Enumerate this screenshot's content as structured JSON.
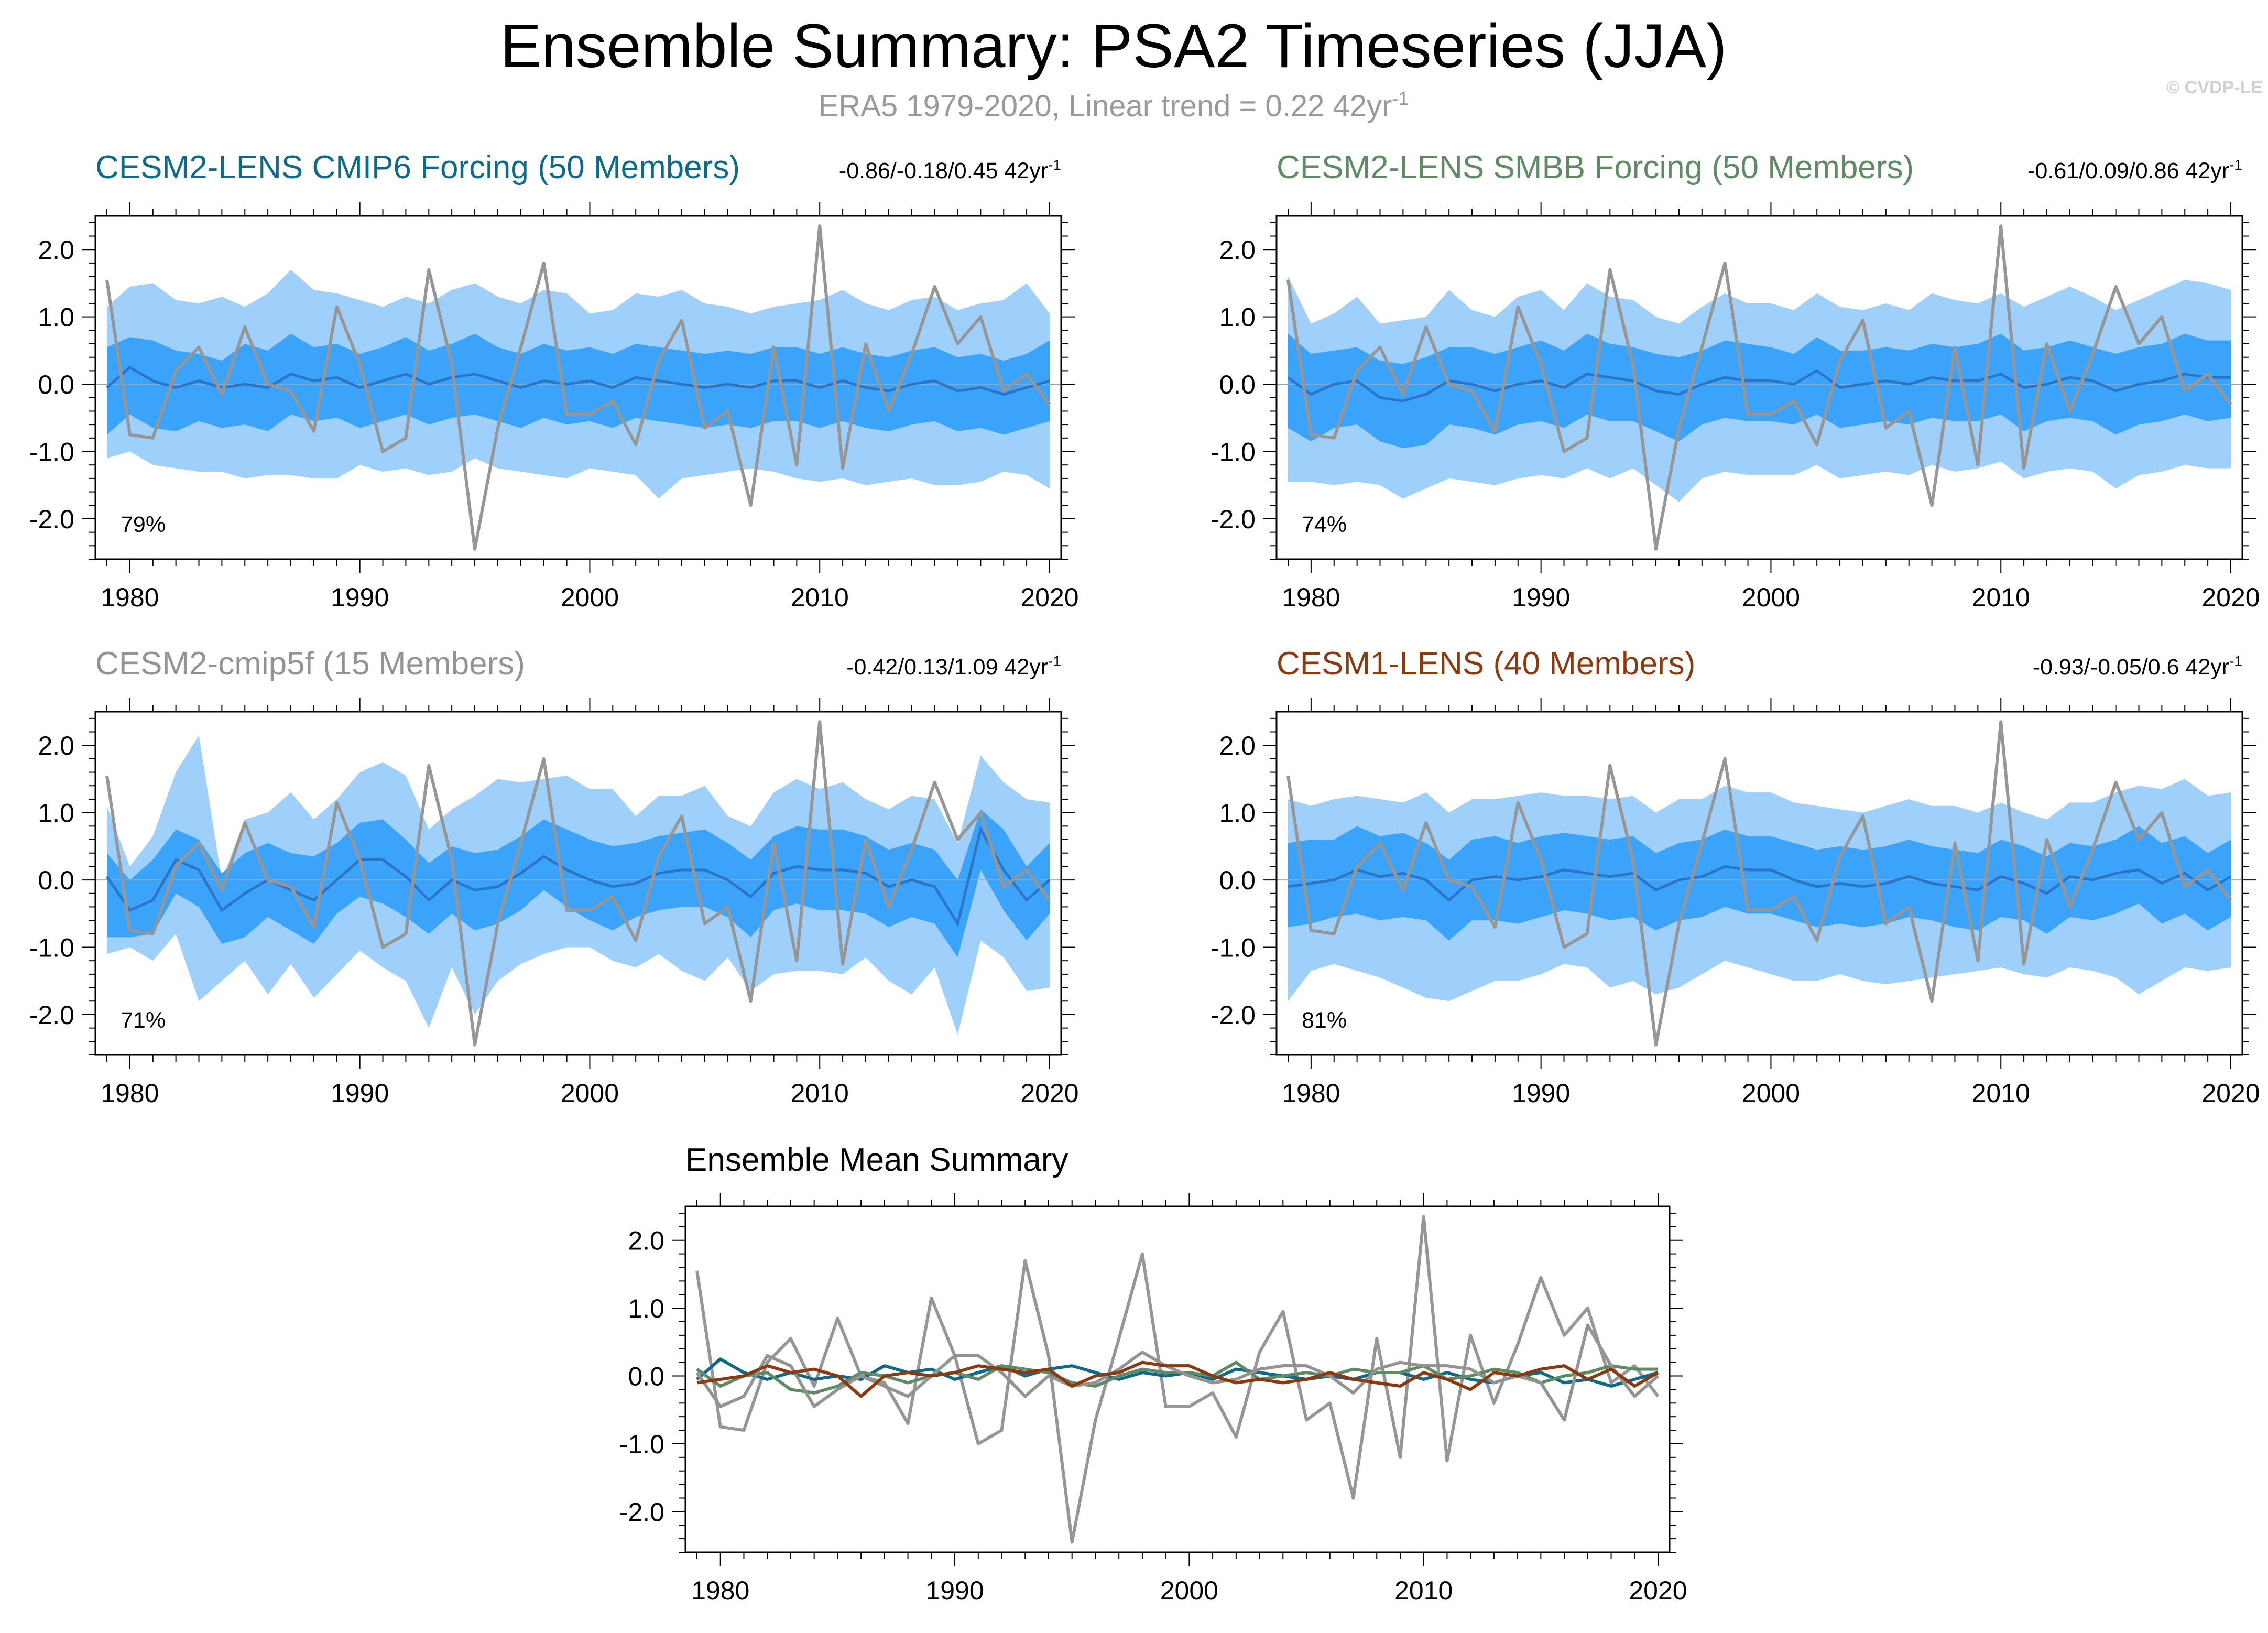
{
  "header": {
    "title": "Ensemble Summary: PSA2 Timeseries (JJA)",
    "subtitle_main": "ERA5 1979-2020, Linear trend = 0.22 42yr",
    "subtitle_sup": "-1",
    "copyright": "© CVDP-LE"
  },
  "colors": {
    "outer_band": "#9fd0fb",
    "inner_band": "#3ba3fa",
    "ens_mean_line": "#2c74c6",
    "obs_line": "#969696",
    "cesm2_cmip6": "#0e6a8a",
    "cesm2_smbb": "#5f8a63",
    "cesm2_cmip5f": "#939393",
    "cesm1": "#8b3a0f"
  },
  "chart_data": [
    {
      "id": "p1",
      "type": "area",
      "title": "CESM2-LENS CMIP6 Forcing (50 Members)",
      "title_color": "#0e6a8a",
      "trend_main": "-0.86/-0.18/0.45 42yr",
      "trend_sup": "-1",
      "percent": "79%",
      "xlim": [
        1979,
        2020
      ],
      "ylim": [
        -2.6,
        2.5
      ],
      "xticks": [
        "1980",
        "1990",
        "2000",
        "2010",
        "2020"
      ],
      "yticks": [
        "2.0",
        "1.0",
        "0.0",
        "-1.0",
        "-2.0"
      ],
      "x_start": 1979,
      "obs": [
        1.55,
        -0.75,
        -0.8,
        0.2,
        0.55,
        -0.15,
        0.85,
        0.0,
        -0.1,
        -0.7,
        1.15,
        0.3,
        -1.0,
        -0.8,
        1.7,
        0.3,
        -2.45,
        -0.65,
        0.55,
        1.8,
        -0.45,
        -0.45,
        -0.25,
        -0.9,
        0.35,
        0.95,
        -0.65,
        -0.4,
        -1.8,
        0.55,
        -1.2,
        2.35,
        -1.25,
        0.6,
        -0.4,
        0.45,
        1.45,
        0.6,
        1.0,
        -0.1,
        0.15,
        -0.3
      ],
      "ens_mean": [
        -0.05,
        0.25,
        0.05,
        -0.05,
        0.05,
        -0.05,
        0.0,
        -0.05,
        0.15,
        0.05,
        0.1,
        -0.05,
        0.05,
        0.15,
        0.0,
        0.1,
        0.15,
        0.05,
        -0.05,
        0.05,
        0.0,
        0.05,
        -0.05,
        0.1,
        0.05,
        0.0,
        -0.05,
        0.0,
        -0.05,
        0.05,
        0.05,
        -0.05,
        0.05,
        -0.05,
        -0.1,
        0.0,
        0.05,
        -0.1,
        -0.05,
        -0.15,
        -0.05,
        0.05
      ],
      "inner_upper": [
        0.55,
        0.7,
        0.65,
        0.5,
        0.45,
        0.35,
        0.6,
        0.5,
        0.75,
        0.55,
        0.6,
        0.45,
        0.55,
        0.7,
        0.5,
        0.6,
        0.75,
        0.55,
        0.45,
        0.6,
        0.5,
        0.55,
        0.45,
        0.6,
        0.55,
        0.5,
        0.45,
        0.5,
        0.45,
        0.55,
        0.55,
        0.45,
        0.55,
        0.45,
        0.4,
        0.5,
        0.55,
        0.4,
        0.45,
        0.35,
        0.45,
        0.65
      ],
      "inner_lower": [
        -0.75,
        -0.45,
        -0.65,
        -0.7,
        -0.55,
        -0.65,
        -0.6,
        -0.7,
        -0.45,
        -0.55,
        -0.5,
        -0.65,
        -0.55,
        -0.45,
        -0.6,
        -0.5,
        -0.45,
        -0.55,
        -0.65,
        -0.5,
        -0.6,
        -0.55,
        -0.65,
        -0.5,
        -0.55,
        -0.6,
        -0.65,
        -0.6,
        -0.65,
        -0.55,
        -0.55,
        -0.65,
        -0.55,
        -0.65,
        -0.7,
        -0.6,
        -0.55,
        -0.7,
        -0.65,
        -0.75,
        -0.65,
        -0.55
      ],
      "outer_upper": [
        1.15,
        1.45,
        1.5,
        1.25,
        1.2,
        1.3,
        1.15,
        1.35,
        1.7,
        1.4,
        1.35,
        1.25,
        1.15,
        1.3,
        1.2,
        1.4,
        1.5,
        1.3,
        1.2,
        1.4,
        1.35,
        1.05,
        1.1,
        1.35,
        1.3,
        1.4,
        1.2,
        1.15,
        1.05,
        1.15,
        1.2,
        1.25,
        1.4,
        1.2,
        1.1,
        1.25,
        1.3,
        1.1,
        1.2,
        1.25,
        1.5,
        1.05
      ],
      "outer_lower": [
        -1.1,
        -1.0,
        -1.2,
        -1.25,
        -1.3,
        -1.3,
        -1.4,
        -1.35,
        -1.35,
        -1.4,
        -1.4,
        -1.2,
        -1.3,
        -1.25,
        -1.35,
        -1.3,
        -1.1,
        -1.25,
        -1.3,
        -1.35,
        -1.4,
        -1.25,
        -1.3,
        -1.35,
        -1.7,
        -1.4,
        -1.35,
        -1.3,
        -1.25,
        -1.3,
        -1.4,
        -1.45,
        -1.4,
        -1.5,
        -1.45,
        -1.4,
        -1.5,
        -1.5,
        -1.45,
        -1.3,
        -1.35,
        -1.55
      ]
    },
    {
      "id": "p2",
      "type": "area",
      "title": "CESM2-LENS SMBB Forcing (50 Members)",
      "title_color": "#5f8a63",
      "trend_main": "-0.61/0.09/0.86 42yr",
      "trend_sup": "-1",
      "percent": "74%",
      "xlim": [
        1979,
        2020
      ],
      "ylim": [
        -2.6,
        2.5
      ],
      "xticks": [
        "1980",
        "1990",
        "2000",
        "2010",
        "2020"
      ],
      "yticks": [
        "2.0",
        "1.0",
        "0.0",
        "-1.0",
        "-2.0"
      ],
      "x_start": 1979,
      "obs": [
        1.55,
        -0.75,
        -0.8,
        0.2,
        0.55,
        -0.15,
        0.85,
        0.0,
        -0.1,
        -0.7,
        1.15,
        0.3,
        -1.0,
        -0.8,
        1.7,
        0.3,
        -2.45,
        -0.65,
        0.55,
        1.8,
        -0.45,
        -0.45,
        -0.25,
        -0.9,
        0.35,
        0.95,
        -0.65,
        -0.4,
        -1.8,
        0.55,
        -1.2,
        2.35,
        -1.25,
        0.6,
        -0.4,
        0.45,
        1.45,
        0.6,
        1.0,
        -0.1,
        0.15,
        -0.3
      ],
      "ens_mean": [
        0.1,
        -0.15,
        0.0,
        0.05,
        -0.2,
        -0.25,
        -0.15,
        0.05,
        0.0,
        -0.1,
        0.0,
        0.05,
        -0.05,
        0.15,
        0.1,
        0.05,
        -0.1,
        -0.15,
        0.0,
        0.1,
        0.05,
        0.05,
        0.0,
        0.2,
        -0.05,
        0.0,
        0.05,
        0.0,
        0.1,
        0.05,
        0.05,
        0.15,
        -0.05,
        0.0,
        0.1,
        0.05,
        -0.1,
        0.0,
        0.05,
        0.15,
        0.1,
        0.1
      ],
      "inner_upper": [
        0.75,
        0.45,
        0.5,
        0.55,
        0.35,
        0.3,
        0.4,
        0.55,
        0.55,
        0.45,
        0.55,
        0.65,
        0.5,
        0.75,
        0.6,
        0.55,
        0.45,
        0.4,
        0.5,
        0.65,
        0.6,
        0.55,
        0.45,
        0.7,
        0.5,
        0.5,
        0.55,
        0.5,
        0.6,
        0.55,
        0.6,
        0.75,
        0.5,
        0.55,
        0.65,
        0.55,
        0.45,
        0.55,
        0.6,
        0.75,
        0.65,
        0.65
      ],
      "inner_lower": [
        -0.65,
        -0.85,
        -0.65,
        -0.6,
        -0.85,
        -0.95,
        -0.9,
        -0.6,
        -0.65,
        -0.75,
        -0.6,
        -0.55,
        -0.65,
        -0.45,
        -0.55,
        -0.55,
        -0.7,
        -0.85,
        -0.6,
        -0.5,
        -0.55,
        -0.55,
        -0.6,
        -0.45,
        -0.65,
        -0.6,
        -0.55,
        -0.6,
        -0.5,
        -0.55,
        -0.55,
        -0.45,
        -0.7,
        -0.55,
        -0.5,
        -0.55,
        -0.75,
        -0.6,
        -0.55,
        -0.45,
        -0.55,
        -0.5
      ],
      "outer_upper": [
        1.6,
        0.9,
        1.05,
        1.3,
        0.9,
        0.95,
        1.0,
        1.4,
        1.1,
        1.0,
        1.3,
        1.4,
        1.1,
        1.5,
        1.3,
        1.25,
        1.0,
        0.9,
        1.15,
        1.35,
        1.2,
        1.2,
        1.1,
        1.35,
        1.15,
        1.1,
        1.2,
        1.1,
        1.35,
        1.25,
        1.2,
        1.35,
        1.15,
        1.3,
        1.45,
        1.3,
        1.1,
        1.25,
        1.4,
        1.55,
        1.5,
        1.4
      ],
      "outer_lower": [
        -1.45,
        -1.45,
        -1.5,
        -1.45,
        -1.5,
        -1.7,
        -1.55,
        -1.4,
        -1.45,
        -1.5,
        -1.4,
        -1.35,
        -1.4,
        -1.25,
        -1.4,
        -1.25,
        -1.5,
        -1.75,
        -1.4,
        -1.3,
        -1.35,
        -1.35,
        -1.35,
        -1.2,
        -1.4,
        -1.35,
        -1.3,
        -1.35,
        -1.2,
        -1.3,
        -1.25,
        -1.15,
        -1.4,
        -1.3,
        -1.25,
        -1.3,
        -1.55,
        -1.35,
        -1.3,
        -1.2,
        -1.25,
        -1.25
      ]
    },
    {
      "id": "p3",
      "type": "area",
      "title": "CESM2-cmip5f (15 Members)",
      "title_color": "#939393",
      "trend_main": "-0.42/0.13/1.09 42yr",
      "trend_sup": "-1",
      "percent": "71%",
      "xlim": [
        1979,
        2020
      ],
      "ylim": [
        -2.6,
        2.5
      ],
      "xticks": [
        "1980",
        "1990",
        "2000",
        "2010",
        "2020"
      ],
      "yticks": [
        "2.0",
        "1.0",
        "0.0",
        "-1.0",
        "-2.0"
      ],
      "x_start": 1979,
      "obs": [
        1.55,
        -0.75,
        -0.8,
        0.2,
        0.55,
        -0.15,
        0.85,
        0.0,
        -0.1,
        -0.7,
        1.15,
        0.3,
        -1.0,
        -0.8,
        1.7,
        0.3,
        -2.45,
        -0.65,
        0.55,
        1.8,
        -0.45,
        -0.45,
        -0.25,
        -0.9,
        0.35,
        0.95,
        -0.65,
        -0.4,
        -1.8,
        0.55,
        -1.2,
        2.35,
        -1.25,
        0.6,
        -0.4,
        0.45,
        1.45,
        0.6,
        1.0,
        -0.1,
        0.15,
        -0.3
      ],
      "ens_mean": [
        0.05,
        -0.45,
        -0.3,
        0.3,
        0.15,
        -0.45,
        -0.2,
        0.0,
        -0.15,
        -0.3,
        0.0,
        0.3,
        0.3,
        0.05,
        -0.3,
        0.0,
        -0.15,
        -0.1,
        0.1,
        0.35,
        0.15,
        0.0,
        -0.1,
        -0.05,
        0.1,
        0.15,
        0.15,
        0.0,
        -0.25,
        0.1,
        0.2,
        0.15,
        0.15,
        0.1,
        -0.1,
        0.0,
        -0.1,
        -0.65,
        0.75,
        0.15,
        -0.3,
        0.0
      ],
      "inner_upper": [
        0.4,
        0.0,
        0.3,
        0.75,
        0.6,
        0.1,
        0.4,
        0.55,
        0.4,
        0.35,
        0.55,
        0.85,
        0.9,
        0.6,
        0.25,
        0.5,
        0.4,
        0.45,
        0.65,
        0.9,
        0.75,
        0.6,
        0.5,
        0.55,
        0.65,
        0.7,
        0.75,
        0.55,
        0.3,
        0.65,
        0.8,
        0.75,
        0.75,
        0.65,
        0.45,
        0.55,
        0.45,
        0.0,
        1.05,
        0.75,
        0.2,
        0.55
      ],
      "inner_lower": [
        -0.85,
        -0.85,
        -0.8,
        -0.2,
        -0.4,
        -0.95,
        -0.85,
        -0.55,
        -0.75,
        -0.95,
        -0.5,
        -0.25,
        -0.35,
        -0.55,
        -0.8,
        -0.5,
        -0.75,
        -0.65,
        -0.45,
        -0.15,
        -0.4,
        -0.6,
        -0.75,
        -0.55,
        -0.45,
        -0.4,
        -0.4,
        -0.55,
        -0.85,
        -0.45,
        -0.35,
        -0.45,
        -0.45,
        -0.5,
        -0.7,
        -0.55,
        -0.65,
        -1.15,
        0.15,
        -0.45,
        -0.9,
        -0.5
      ],
      "outer_upper": [
        1.1,
        0.2,
        0.65,
        1.6,
        2.15,
        0.0,
        0.9,
        1.0,
        1.3,
        0.9,
        1.2,
        1.6,
        1.75,
        1.55,
        0.75,
        1.05,
        1.25,
        1.5,
        1.45,
        1.5,
        1.55,
        1.35,
        1.35,
        0.95,
        1.25,
        1.25,
        1.4,
        0.95,
        0.8,
        1.3,
        1.5,
        1.35,
        1.45,
        1.2,
        1.05,
        1.25,
        1.2,
        0.55,
        1.85,
        1.45,
        1.2,
        1.15
      ],
      "outer_lower": [
        -1.1,
        -1.0,
        -1.2,
        -0.8,
        -1.8,
        -1.5,
        -1.2,
        -1.7,
        -1.25,
        -1.75,
        -1.4,
        -1.05,
        -1.3,
        -1.5,
        -2.2,
        -1.3,
        -2.0,
        -1.5,
        -1.25,
        -1.1,
        -1.0,
        -1.0,
        -1.2,
        -1.3,
        -1.1,
        -1.35,
        -1.5,
        -1.15,
        -1.65,
        -1.4,
        -1.35,
        -1.35,
        -1.4,
        -1.15,
        -1.5,
        -1.7,
        -1.3,
        -2.3,
        -0.9,
        -1.15,
        -1.65,
        -1.6
      ]
    },
    {
      "id": "p4",
      "type": "area",
      "title": "CESM1-LENS (40 Members)",
      "title_color": "#8b3a0f",
      "trend_main": "-0.93/-0.05/0.6 42yr",
      "trend_sup": "-1",
      "percent": "81%",
      "xlim": [
        1979,
        2020
      ],
      "ylim": [
        -2.6,
        2.5
      ],
      "xticks": [
        "1980",
        "1990",
        "2000",
        "2010",
        "2020"
      ],
      "yticks": [
        "2.0",
        "1.0",
        "0.0",
        "-1.0",
        "-2.0"
      ],
      "x_start": 1979,
      "obs": [
        1.55,
        -0.75,
        -0.8,
        0.2,
        0.55,
        -0.15,
        0.85,
        0.0,
        -0.1,
        -0.7,
        1.15,
        0.3,
        -1.0,
        -0.8,
        1.7,
        0.3,
        -2.45,
        -0.65,
        0.55,
        1.8,
        -0.45,
        -0.45,
        -0.25,
        -0.9,
        0.35,
        0.95,
        -0.65,
        -0.4,
        -1.8,
        0.55,
        -1.2,
        2.35,
        -1.25,
        0.6,
        -0.4,
        0.45,
        1.45,
        0.6,
        1.0,
        -0.1,
        0.15,
        -0.3
      ],
      "ens_mean": [
        -0.1,
        -0.05,
        0.0,
        0.15,
        0.05,
        0.1,
        0.0,
        -0.3,
        0.0,
        0.05,
        0.0,
        0.05,
        0.15,
        0.1,
        0.05,
        0.1,
        -0.15,
        0.0,
        0.05,
        0.2,
        0.15,
        0.15,
        0.0,
        -0.1,
        -0.05,
        -0.1,
        -0.05,
        0.05,
        -0.05,
        -0.1,
        -0.15,
        0.05,
        -0.05,
        -0.2,
        0.05,
        0.0,
        0.1,
        0.15,
        -0.05,
        0.1,
        -0.15,
        0.05
      ],
      "inner_upper": [
        0.55,
        0.6,
        0.6,
        0.8,
        0.65,
        0.7,
        0.55,
        0.3,
        0.6,
        0.65,
        0.55,
        0.65,
        0.7,
        0.65,
        0.6,
        0.65,
        0.4,
        0.55,
        0.6,
        0.75,
        0.65,
        0.65,
        0.55,
        0.45,
        0.5,
        0.45,
        0.5,
        0.6,
        0.5,
        0.45,
        0.4,
        0.6,
        0.5,
        0.35,
        0.55,
        0.5,
        0.6,
        0.8,
        0.55,
        0.65,
        0.4,
        0.6
      ],
      "inner_lower": [
        -0.7,
        -0.65,
        -0.55,
        -0.5,
        -0.6,
        -0.55,
        -0.6,
        -0.9,
        -0.6,
        -0.6,
        -0.65,
        -0.55,
        -0.45,
        -0.5,
        -0.6,
        -0.55,
        -0.75,
        -0.6,
        -0.55,
        -0.4,
        -0.5,
        -0.5,
        -0.6,
        -0.7,
        -0.65,
        -0.7,
        -0.65,
        -0.55,
        -0.6,
        -0.7,
        -0.75,
        -0.55,
        -0.6,
        -0.8,
        -0.55,
        -0.6,
        -0.5,
        -0.35,
        -0.65,
        -0.5,
        -0.75,
        -0.55
      ],
      "outer_upper": [
        1.2,
        1.1,
        1.2,
        1.25,
        1.2,
        1.15,
        1.3,
        1.0,
        1.2,
        1.2,
        1.25,
        1.3,
        1.25,
        1.25,
        1.2,
        1.25,
        1.0,
        1.2,
        1.2,
        1.4,
        1.3,
        1.3,
        1.15,
        1.1,
        1.05,
        1.0,
        1.1,
        1.2,
        1.1,
        1.1,
        1.0,
        1.15,
        1.0,
        0.9,
        1.15,
        1.15,
        1.3,
        1.4,
        1.35,
        1.5,
        1.25,
        1.3
      ],
      "outer_lower": [
        -1.8,
        -1.35,
        -1.25,
        -1.35,
        -1.45,
        -1.6,
        -1.75,
        -1.8,
        -1.65,
        -1.5,
        -1.5,
        -1.4,
        -1.25,
        -1.3,
        -1.6,
        -1.5,
        -1.7,
        -1.6,
        -1.4,
        -1.2,
        -1.3,
        -1.4,
        -1.5,
        -1.5,
        -1.4,
        -1.5,
        -1.55,
        -1.5,
        -1.45,
        -1.4,
        -1.35,
        -1.3,
        -1.4,
        -1.45,
        -1.3,
        -1.35,
        -1.45,
        -1.7,
        -1.5,
        -1.3,
        -1.35,
        -1.3
      ]
    },
    {
      "id": "p5",
      "type": "line",
      "title": "Ensemble Mean Summary",
      "title_color": "#000000",
      "xlim": [
        1979,
        2020
      ],
      "ylim": [
        -2.6,
        2.5
      ],
      "xticks": [
        "1980",
        "1990",
        "2000",
        "2010",
        "2020"
      ],
      "yticks": [
        "2.0",
        "1.0",
        "0.0",
        "-1.0",
        "-2.0"
      ],
      "x_start": 1979,
      "series_ref": [
        "p1",
        "p2",
        "p3",
        "p4"
      ]
    }
  ]
}
